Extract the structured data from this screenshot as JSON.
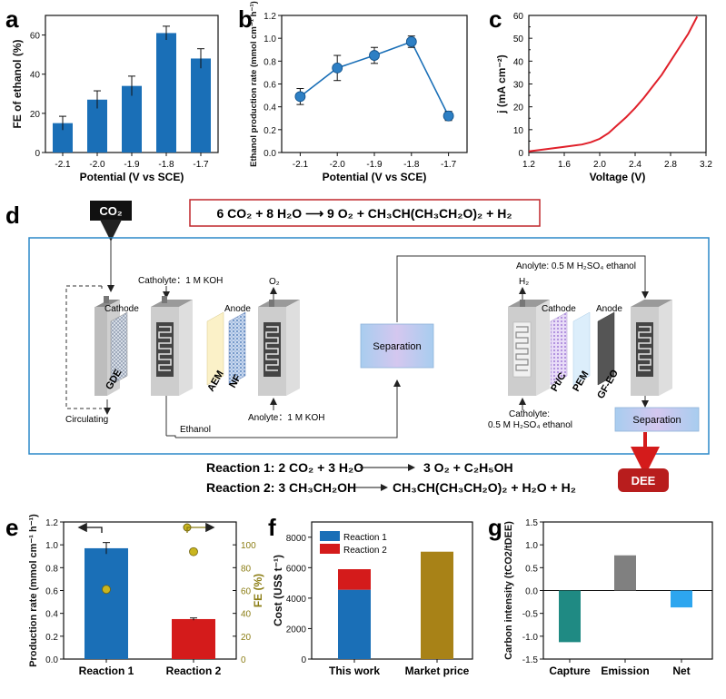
{
  "panel_letters": {
    "a": "a",
    "b": "b",
    "c": "c",
    "d": "d",
    "e": "e",
    "f": "f",
    "g": "g"
  },
  "chart_data": [
    {
      "id": "a",
      "type": "bar",
      "xlabel": "Potential (V vs SCE)",
      "ylabel": "FE of ethanol (%)",
      "categories": [
        "-2.1",
        "-2.0",
        "-1.9",
        "-1.8",
        "-1.7"
      ],
      "values": [
        15,
        27,
        34,
        61,
        48
      ],
      "errors": [
        3.5,
        4.5,
        5,
        3.5,
        5
      ],
      "ylim": [
        0,
        70
      ],
      "yticks": [
        0,
        20,
        40,
        60
      ],
      "colors": {
        "bar": "#1a6fb7"
      }
    },
    {
      "id": "b",
      "type": "line",
      "xlabel": "Potential (V vs SCE)",
      "ylabel": "Ethanol production rate (mmol cm⁻¹ h⁻¹)",
      "categories": [
        "-2.1",
        "-2.0",
        "-1.9",
        "-1.8",
        "-1.7"
      ],
      "values": [
        0.49,
        0.74,
        0.85,
        0.97,
        0.32
      ],
      "errors": [
        0.07,
        0.11,
        0.07,
        0.05,
        0.04
      ],
      "ylim": [
        0,
        1.2
      ],
      "yticks": [
        0,
        0.2,
        0.4,
        0.6,
        0.8,
        1.0,
        1.2
      ],
      "colors": {
        "line": "#1a6fb7",
        "marker": "#2d7fc4"
      }
    },
    {
      "id": "c",
      "type": "line",
      "xlabel": "Voltage (V)",
      "ylabel": "j (mA cm⁻²)",
      "x": [
        1.2,
        1.4,
        1.6,
        1.8,
        1.9,
        2.0,
        2.1,
        2.2,
        2.3,
        2.4,
        2.5,
        2.6,
        2.7,
        2.8,
        2.9,
        3.0,
        3.1
      ],
      "y": [
        0.5,
        1.5,
        2.5,
        3.5,
        4.5,
        6,
        8.5,
        12,
        15.5,
        19.5,
        24,
        29,
        34,
        40,
        46,
        52,
        59.5
      ],
      "xlim": [
        1.2,
        3.2
      ],
      "ylim": [
        0,
        60
      ],
      "xticks": [
        1.2,
        1.6,
        2.0,
        2.4,
        2.8,
        3.2
      ],
      "yticks": [
        0,
        5,
        10,
        15,
        20,
        25,
        30,
        35,
        40,
        45,
        50,
        55,
        60
      ],
      "colors": {
        "line": "#e0202a"
      }
    },
    {
      "id": "e",
      "type": "bar",
      "categories": [
        "Reaction 1",
        "Reaction 2"
      ],
      "ylabel": "Production rate (mmol cm⁻¹ h⁻¹)",
      "y2label": "FE (%)",
      "values": [
        0.97,
        0.35
      ],
      "errors": [
        0.05,
        0.01
      ],
      "fe_values": [
        61,
        94
      ],
      "fe_errors": [
        4,
        3
      ],
      "ylim": [
        0,
        1.2
      ],
      "yticks": [
        0,
        0.2,
        0.4,
        0.6,
        0.8,
        1.0,
        1.2
      ],
      "y2lim": [
        0,
        120
      ],
      "y2ticks": [
        0,
        20,
        40,
        60,
        80,
        100
      ],
      "colors": {
        "reaction1": "#1a6fb7",
        "reaction2": "#d41b1b",
        "fe": "#8b7d14",
        "marker": "#c9b51f"
      }
    },
    {
      "id": "f",
      "type": "bar",
      "categories": [
        "This work",
        "Market price"
      ],
      "ylabel": "Cost (US$ t⁻¹)",
      "series": [
        {
          "name": "Reaction 1",
          "values": [
            4550,
            0
          ]
        },
        {
          "name": "Reaction 2",
          "values": [
            1350,
            0
          ]
        }
      ],
      "market_value": 7050,
      "ylim": [
        0,
        9000
      ],
      "yticks": [
        0,
        2000,
        4000,
        6000,
        8000
      ],
      "legend": "top-left",
      "colors": {
        "reaction1": "#1a6fb7",
        "reaction2": "#d41b1b",
        "market": "#a88217"
      }
    },
    {
      "id": "g",
      "type": "bar",
      "categories": [
        "Capture",
        "Emission",
        "Net"
      ],
      "ylabel": "Carbon intensity (tCO2/tDEE)",
      "values": [
        -1.13,
        0.77,
        -0.37
      ],
      "ylim": [
        -1.5,
        1.5
      ],
      "yticks": [
        -1.5,
        -1.0,
        -0.5,
        0.0,
        0.5,
        1.0,
        1.5
      ],
      "colors": {
        "capture": "#1f8a83",
        "emission": "#808080",
        "net": "#2da6ef"
      }
    }
  ],
  "diagram": {
    "co2_label": "CO₂",
    "overall_equation": "6 CO₂ + 8 H₂O ⟶ 9 O₂ + CH₃CH(CH₃CH₂O)₂ + H₂",
    "catholyte_left": "Catholyte：1 M KOH",
    "anolyte_left": "Anolyte：1 M KOH",
    "o2_label": "O₂",
    "h2_label": "H₂",
    "cathode_left": "Cathode",
    "anode_left": "Anode",
    "gde": "GDE",
    "aem": "AEM",
    "nf": "NF",
    "circulating": "Circulating",
    "ethanol": "Ethanol",
    "separation_center": "Separation",
    "separation_right": "Separation",
    "anolyte_right": "Anolyte: 0.5 M H₂SO₄ ethanol",
    "catholyte_right_1": "Catholyte:",
    "catholyte_right_2": "0.5 M H₂SO₄ ethanol",
    "cathode_right": "Cathode",
    "anode_right": "Anode",
    "ptc": "Pt/C",
    "pem": "PEM",
    "gfeo": "GF-EO",
    "dee": "DEE",
    "reaction1_label": "Reaction 1: 2 CO₂ + 3 H₂O",
    "reaction1_products": "3 O₂ + C₂H₅OH",
    "reaction2_label": "Reaction 2: 3 CH₃CH₂OH",
    "reaction2_products": "CH₃CH(CH₃CH₂O)₂ + H₂O + H₂"
  }
}
